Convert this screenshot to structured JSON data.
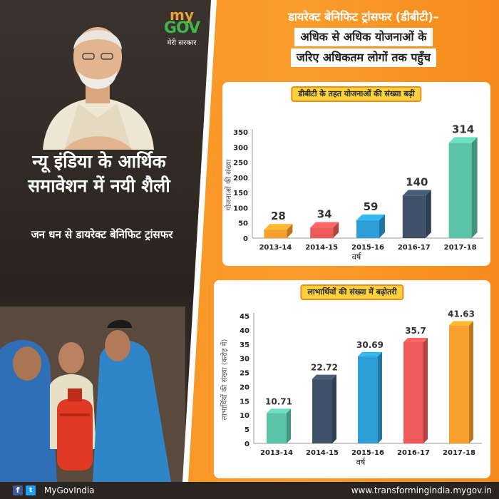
{
  "left": {
    "logo": {
      "my": "my",
      "gov": "GOV",
      "tagline": "मेरी सरकार"
    },
    "headline": "न्यू इंडिया के आर्थिक समावेशन में नयी शैली",
    "subheadline": "जन धन से डायरेक्ट बेनिफिट ट्रांसफर"
  },
  "title": {
    "line1": "डायरेक्ट बेनिफिट ट्रांसफर (डीबीटी)–",
    "line2": "अधिक से अधिक योजनाओं के",
    "line3": "जरिए अधिकतम लोगों तक पहुँच"
  },
  "colors": {
    "orange": "#f78f1e",
    "pill": "#fbd23c"
  },
  "chart_data": [
    {
      "type": "bar",
      "title": "डीबीटी के तहत योजनाओं की संख्या बढ़ी",
      "xlabel": "वर्ष",
      "ylabel": "योजनाओं की संख्या",
      "categories": [
        "2013-14",
        "2014-15",
        "2015-16",
        "2016-17",
        "2017-18"
      ],
      "values": [
        28,
        34,
        59,
        140,
        314
      ],
      "value_labels": [
        "28",
        "34",
        "59",
        "140",
        "314"
      ],
      "colors": [
        "#f7a12c",
        "#ee5a5a",
        "#2d9fd6",
        "#3f526a",
        "#5cc4a6"
      ],
      "ylim": [
        0,
        350
      ],
      "yticks": [
        0,
        50,
        100,
        150,
        200,
        250,
        300,
        350
      ],
      "ytick_labels": [
        "0",
        "50",
        "100",
        "150",
        "200",
        "250",
        "300",
        "350"
      ],
      "grid": false
    },
    {
      "type": "bar",
      "title": "लाभार्थियों की संख्या में बढ़ोतरी",
      "xlabel": "वर्ष",
      "ylabel": "लाभार्थियों की संख्या (करोड़ में)",
      "categories": [
        "2013-14",
        "2014-15",
        "2015-16",
        "2016-17",
        "2017-18"
      ],
      "values": [
        10.71,
        22.72,
        30.69,
        35.7,
        41.63
      ],
      "value_labels": [
        "10.71",
        "22.72",
        "30.69",
        "35.7",
        "41.63"
      ],
      "colors": [
        "#5cc4a6",
        "#3f526a",
        "#2d9fd6",
        "#ee5a5a",
        "#f7a12c"
      ],
      "ylim": [
        0,
        45
      ],
      "yticks": [
        0,
        5,
        10,
        15,
        20,
        25,
        30,
        35,
        40,
        45
      ],
      "ytick_labels": [
        "0",
        "5",
        "10",
        "15",
        "20",
        "25",
        "30",
        "35",
        "40",
        "45"
      ],
      "grid": false
    }
  ],
  "footer": {
    "handle": "MyGovIndia",
    "site": "www.transformingindia.mygov.in"
  }
}
